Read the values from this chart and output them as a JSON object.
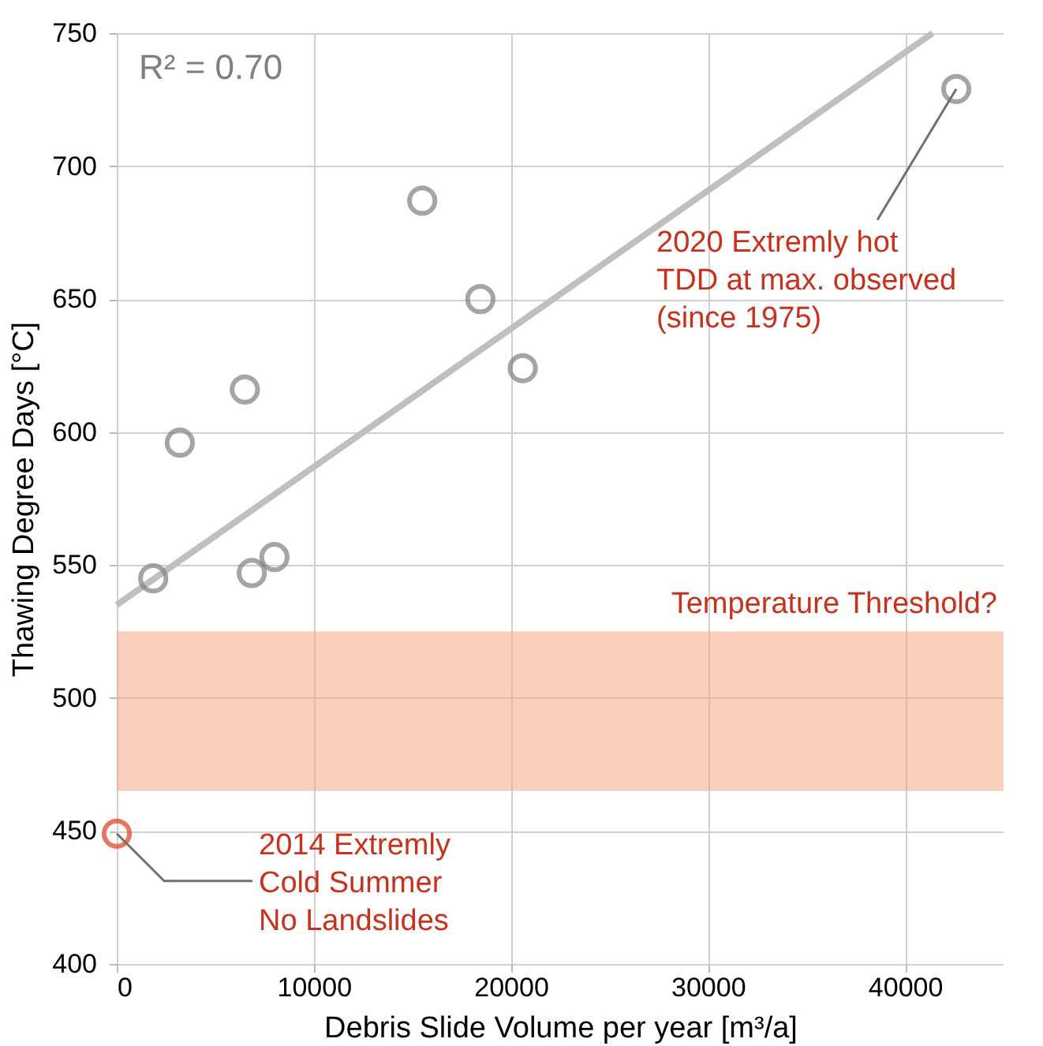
{
  "chart_data": {
    "type": "scatter",
    "xlabel": "Debris Slide Volume per year [m³/a]",
    "ylabel": "Thawing Degree Days [°C]",
    "xlim": [
      0,
      45000
    ],
    "xticks": [
      0,
      10000,
      20000,
      30000,
      40000
    ],
    "ylim": [
      400,
      750
    ],
    "yticks": [
      400,
      450,
      500,
      550,
      600,
      650,
      700,
      750
    ],
    "grid": true,
    "marker": "circle",
    "series": [
      {
        "color": "#7f7f7f",
        "x": [
          1850,
          3200,
          6500,
          6850,
          8000,
          15500,
          18450,
          20600,
          42600
        ],
        "values": [
          545,
          596,
          616,
          547,
          553,
          687,
          650,
          624,
          729
        ]
      },
      {
        "color": "#d9401f",
        "x": [
          0
        ],
        "values": [
          449
        ]
      },
      {
        "type": "line",
        "color": "#bfbfbf",
        "line_style": "solid",
        "marker": "none",
        "x": [
          0,
          41400
        ],
        "values": [
          535,
          750
        ]
      }
    ],
    "bands": [
      {
        "axis": "y",
        "from": 465,
        "to": 525,
        "label": "Temperature Threshold?",
        "color": "#f4a582"
      }
    ],
    "annotations": [
      "R² = 0.70",
      {
        "text": "2020 Extremly hot\nTDD at max. observed\n(since 1975)",
        "x": 42600,
        "y": 729
      },
      {
        "text": "2014 Extremly\nCold Summer\nNo Landslides",
        "x": 0,
        "y": 449
      }
    ]
  }
}
